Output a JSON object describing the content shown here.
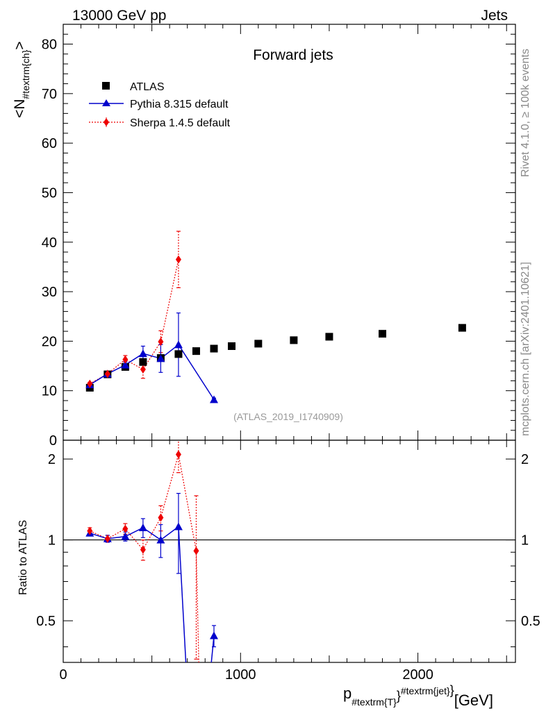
{
  "header": {
    "left": "13000 GeV pp",
    "right": "Jets"
  },
  "side_texts": {
    "rivet": "Rivet 4.1.0, ≥ 100k events",
    "mcplots": "mcplots.cern.ch [arXiv:2401.10621]"
  },
  "colors": {
    "atlas": "#000000",
    "pythia": "#0000cc",
    "sherpa": "#ee0000",
    "analysis_label": "#999999"
  },
  "chart_data": {
    "type": "scatter",
    "title": "Forward jets",
    "analysis": "(ATLAS_2019_I1740909)",
    "xlabel": {
      "main": "p",
      "sub": "#textrm{T}",
      "sup": "#textrm{jet}",
      "unit": "[GeV]"
    },
    "ylabel": {
      "main_open": "<N",
      "sub": "#textrm{ch}",
      "main_close": ">"
    },
    "ratio_ylabel": "Ratio to ATLAS",
    "xlim": [
      0,
      2550
    ],
    "ylim": [
      0,
      84
    ],
    "ratio_ylim": [
      0.35,
      2.35
    ],
    "x_ticks": [
      0,
      1000,
      2000
    ],
    "x_tick_labels": [
      "0",
      "1000",
      "2000"
    ],
    "y_ticks": [
      0,
      10,
      20,
      30,
      40,
      50,
      60,
      70,
      80
    ],
    "y_tick_labels": [
      "0",
      "10",
      "20",
      "30",
      "40",
      "50",
      "60",
      "70",
      "80"
    ],
    "ratio_ticks": [
      0.5,
      1,
      2
    ],
    "ratio_tick_labels": [
      "0.5",
      "1",
      "2"
    ],
    "legend": [
      {
        "key": "atlas",
        "label": "ATLAS"
      },
      {
        "key": "pythia",
        "label": "Pythia 8.315 default"
      },
      {
        "key": "sherpa",
        "label": "Sherpa 1.4.5 default"
      }
    ],
    "series": [
      {
        "key": "atlas",
        "name": "ATLAS",
        "marker": "square",
        "x": [
          150,
          250,
          350,
          450,
          550,
          650,
          750,
          850,
          950,
          1100,
          1300,
          1500,
          1800,
          2250
        ],
        "y": [
          10.6,
          13.3,
          14.8,
          15.8,
          16.6,
          17.4,
          18.0,
          18.5,
          19.0,
          19.5,
          20.2,
          20.9,
          21.5,
          22.7
        ]
      },
      {
        "key": "pythia",
        "name": "Pythia 8.315 default",
        "marker": "triangle",
        "x": [
          150,
          250,
          350,
          450,
          550,
          650,
          850
        ],
        "y": [
          11.2,
          13.4,
          15.2,
          17.5,
          16.5,
          19.3,
          8.2
        ],
        "err": [
          0.3,
          0.4,
          0.6,
          1.5,
          2.8,
          6.4,
          0.3
        ],
        "ratio": [
          1.06,
          1.01,
          1.03,
          1.11,
          1.0,
          1.12,
          0.44
        ],
        "ratio_err": [
          0.02,
          0.03,
          0.04,
          0.09,
          0.14,
          0.37,
          0.04
        ]
      },
      {
        "key": "sherpa",
        "name": "Sherpa 1.4.5 default",
        "marker": "diamond",
        "x": [
          150,
          250,
          350,
          450,
          550,
          650
        ],
        "y": [
          11.4,
          13.4,
          16.3,
          14.3,
          19.9,
          36.5
        ],
        "err": [
          0.3,
          0.4,
          0.8,
          1.8,
          2.2,
          5.7
        ],
        "ratio": [
          1.08,
          1.01,
          1.1,
          0.92,
          1.21,
          2.08
        ],
        "ratio_err": [
          0.03,
          0.03,
          0.05,
          0.08,
          0.13,
          0.3
        ],
        "ratio_extra": {
          "x": 750,
          "y": 0.91,
          "err": 0.55
        }
      }
    ]
  }
}
